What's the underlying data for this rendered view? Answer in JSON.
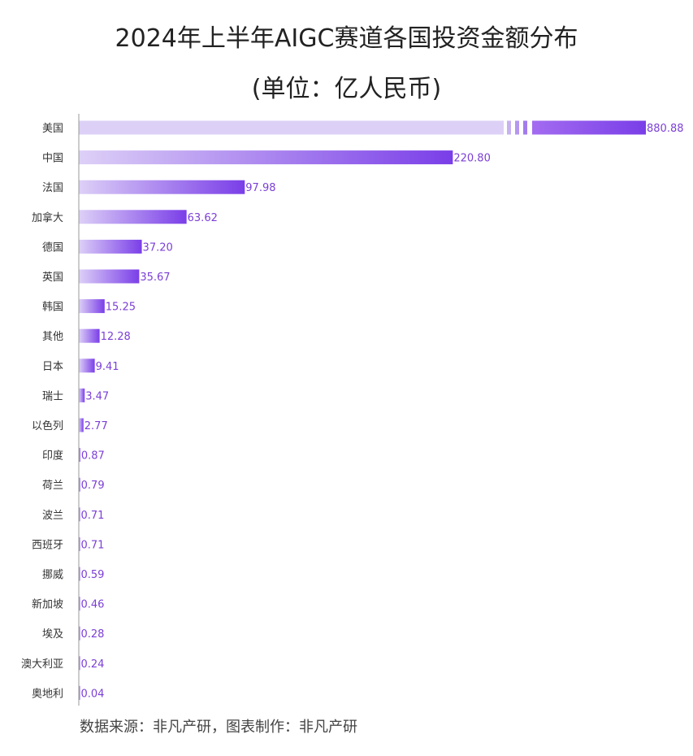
{
  "chart_data": {
    "type": "bar",
    "orientation": "horizontal",
    "title": "2024年上半年AIGC赛道各国投资金额分布",
    "subtitle": "(单位：亿人民币)",
    "categories": [
      "美国",
      "中国",
      "法国",
      "加拿大",
      "德国",
      "英国",
      "韩国",
      "其他",
      "日本",
      "瑞士",
      "以色列",
      "印度",
      "荷兰",
      "波兰",
      "西班牙",
      "挪威",
      "新加坡",
      "埃及",
      "澳大利亚",
      "奥地利"
    ],
    "values": [
      880.88,
      220.8,
      97.98,
      63.62,
      37.2,
      35.67,
      15.25,
      12.28,
      9.41,
      3.47,
      2.77,
      0.87,
      0.79,
      0.71,
      0.71,
      0.59,
      0.46,
      0.28,
      0.24,
      0.04
    ],
    "value_labels": [
      "880.88",
      "220.80",
      "97.98",
      "63.62",
      "37.20",
      "35.67",
      "15.25",
      "12.28",
      "9.41",
      "3.47",
      "2.77",
      "0.87",
      "0.79",
      "0.71",
      "0.71",
      "0.59",
      "0.46",
      "0.28",
      "0.24",
      "0.04"
    ],
    "axis_break": true,
    "grid": false,
    "colors": {
      "bar_start": "#ddd0f7",
      "bar_end": "#7a3ee8",
      "label": "#7b3fd6",
      "axis": "#999999"
    }
  },
  "source": "数据来源：非凡产研，图表制作：非凡产研"
}
